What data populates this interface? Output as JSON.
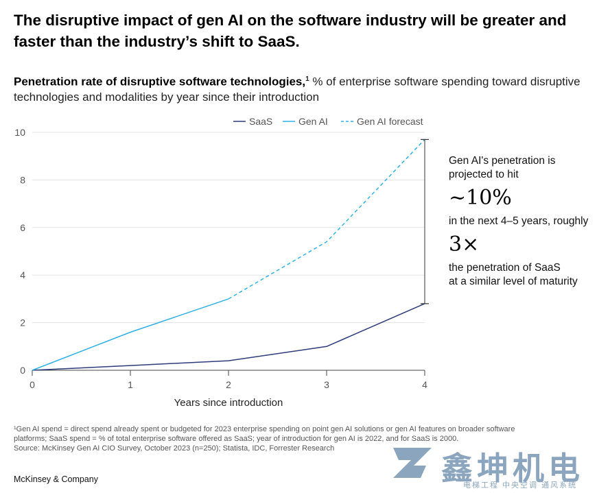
{
  "headline": {
    "line1": "The disruptive impact of gen AI on the software industry will be greater and",
    "line2": "faster than the industry’s shift to SaaS."
  },
  "subhead": {
    "bold": "Penetration rate of disruptive software technologies,",
    "sup": "1",
    "rest": " % of enterprise software spending toward disruptive technologies and modalities by year since their introduction"
  },
  "chart_data": {
    "type": "line",
    "title": "Penetration rate of disruptive software technologies",
    "xlabel": "Years since introduction",
    "ylabel": "% of enterprise software spending",
    "x_ticks": [
      "0",
      "1",
      "2",
      "3",
      "4"
    ],
    "y_ticks": [
      "0",
      "2",
      "4",
      "6",
      "8",
      "10"
    ],
    "xlim": [
      0,
      4
    ],
    "ylim": [
      0,
      10
    ],
    "grid": "horizontal",
    "legend_position": "top-right",
    "series": [
      {
        "name": "SaaS",
        "style": "solid",
        "color": "#2b3a7a",
        "x": [
          0,
          1,
          2,
          3,
          4
        ],
        "y": [
          0,
          0.2,
          0.4,
          1.0,
          2.8
        ]
      },
      {
        "name": "Gen AI",
        "style": "solid",
        "color": "#2fb0e6",
        "x": [
          0,
          1,
          2
        ],
        "y": [
          0,
          1.6,
          3.0
        ]
      },
      {
        "name": "Gen AI forecast",
        "style": "dashed",
        "color": "#2fb0e6",
        "x": [
          2,
          3,
          4
        ],
        "y": [
          3.0,
          5.4,
          9.7
        ]
      }
    ],
    "annotation_bracket": {
      "x": 4,
      "from": 2.8,
      "to": 9.7
    }
  },
  "callout": {
    "line1": "Gen AI's penetration is",
    "line2": "projected to hit",
    "big1": "~10%",
    "line3": "in the next 4–5 years, roughly",
    "big2": "3×",
    "line4": "the penetration of SaaS",
    "line5": "at a similar level of maturity"
  },
  "footnote": {
    "line1": "¹Gen AI spend = direct spend already spent or budgeted for 2023 enterprise spending on point gen AI solutions or gen AI features on broader software",
    "line2": "platforms; SaaS spend = % of total enterprise software offered as SaaS; year of introduction for gen AI is 2022, and for SaaS is 2000.",
    "line3": "Source: McKinsey Gen AI CIO Survey, October 2023 (n=250); Statista, IDC, Forrester Research"
  },
  "brand": "McKinsey & Company",
  "watermark": {
    "text": "鑫坤机电",
    "sub": "电梯工程 中央空调 通风系统"
  },
  "colors": {
    "saas": "#2b3a7a",
    "genai": "#2fb0e6",
    "axis": "#444444",
    "grid": "#e3e3e3"
  }
}
